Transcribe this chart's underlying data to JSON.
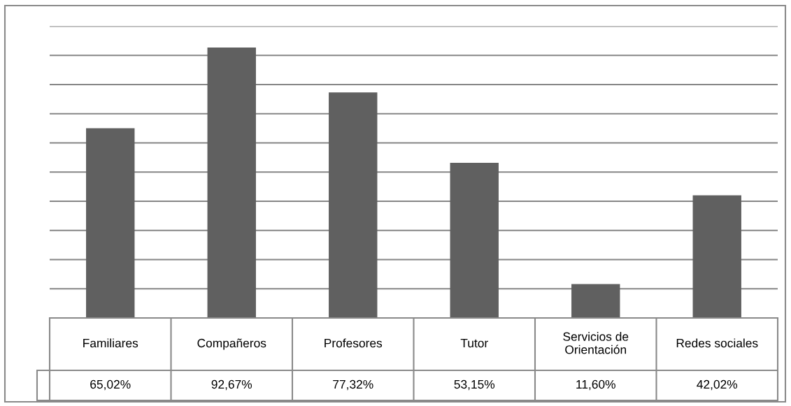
{
  "chart_data": {
    "type": "bar",
    "categories": [
      "Familiares",
      "Compañeros",
      "Profesores",
      "Tutor",
      "Servicios de\nOrientación",
      "Redes sociales"
    ],
    "values": [
      65.02,
      92.67,
      77.32,
      53.15,
      11.6,
      42.02
    ],
    "value_labels": [
      "65,02%",
      "92,67%",
      "77,32%",
      "53,15%",
      "11,60%",
      "42,02%"
    ],
    "color": "#606060",
    "ylim": [
      0,
      100
    ],
    "yticks": [
      {
        "value": 0,
        "label": null
      },
      {
        "value": 10,
        "label": null
      },
      {
        "value": 20,
        "label": null
      },
      {
        "value": 30,
        "label": null
      },
      {
        "value": 40,
        "label": null
      },
      {
        "value": 50,
        "label": null
      },
      {
        "value": 60,
        "label": null
      },
      {
        "value": 70,
        "label": null
      },
      {
        "value": 80,
        "label": null
      },
      {
        "value": 90,
        "label": null
      },
      {
        "value": 100,
        "label": null
      }
    ],
    "grid": "y",
    "tick_labels": "x"
  }
}
